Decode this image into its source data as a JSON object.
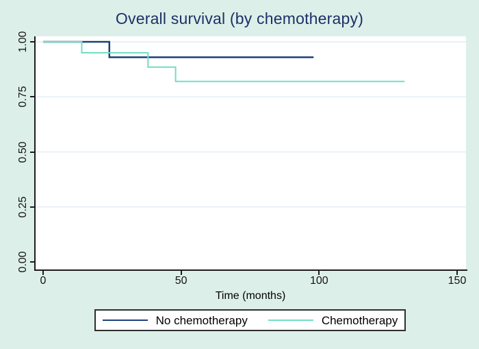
{
  "figure": {
    "background_color": "#ddefe9",
    "plot_background": "#ffffff",
    "title_color": "#1c3166",
    "axis_color": "#1c1c1c",
    "tick_text_color": "#141414",
    "gridline_color": "#e9f0f8",
    "legend_border_color": "#2e2e2e"
  },
  "chart_data": {
    "type": "line",
    "subtype": "kaplan-meier-step",
    "title": "Overall survival (by chemotherapy)",
    "xlabel": "Time (months)",
    "ylabel": "",
    "xlim": [
      0,
      150
    ],
    "ylim": [
      0,
      1
    ],
    "grid": "horizontal-only",
    "legend_position": "bottom-center-boxed",
    "xticks": {
      "values": [
        0,
        50,
        100,
        150
      ],
      "labels": [
        "0",
        "50",
        "100",
        "150"
      ]
    },
    "yticks": {
      "values": [
        0,
        0.25,
        0.5,
        0.75,
        1
      ],
      "labels": [
        "0.00",
        "0.25",
        "0.50",
        "0.75",
        "1.00"
      ]
    },
    "series": [
      {
        "name": "No chemotherapy",
        "color": "#1b4179",
        "stroke_width": 2.5,
        "points": [
          [
            0,
            1.0
          ],
          [
            24,
            1.0
          ],
          [
            24,
            0.93
          ],
          [
            98,
            0.93
          ]
        ]
      },
      {
        "name": "Chemotherapy",
        "color": "#6fe0c2",
        "stroke_width": 2,
        "points": [
          [
            0,
            1.0
          ],
          [
            14,
            1.0
          ],
          [
            14,
            0.95
          ],
          [
            38,
            0.95
          ],
          [
            38,
            0.885
          ],
          [
            48,
            0.885
          ],
          [
            48,
            0.82
          ],
          [
            131,
            0.82
          ]
        ]
      }
    ]
  }
}
